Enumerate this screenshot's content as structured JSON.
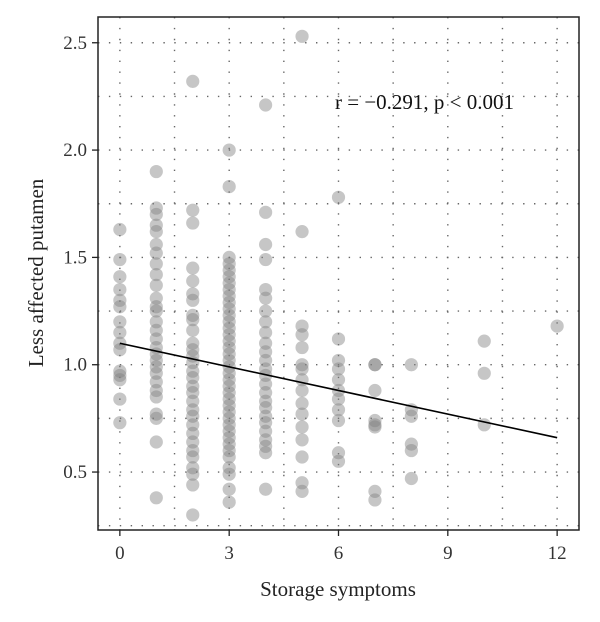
{
  "chart_data": {
    "type": "scatter",
    "title": "",
    "xlabel": "Storage symptoms",
    "ylabel": "Less affected putamen",
    "xlim": [
      -0.6,
      12.6
    ],
    "ylim": [
      0.23,
      2.62
    ],
    "x_ticks": [
      0,
      3,
      6,
      9,
      12
    ],
    "x_tick_labels": [
      "0",
      "3",
      "6",
      "9",
      "12"
    ],
    "y_ticks": [
      0.5,
      1.0,
      1.5,
      2.0,
      2.5
    ],
    "y_tick_labels": [
      "0.5",
      "1.0",
      "1.5",
      "2.0",
      "2.5"
    ],
    "grid": "dotted",
    "annotation": "r = −0.291, p < 0.001",
    "point_color": "#808080",
    "line_color": "#000000",
    "regression_line": {
      "x": [
        0,
        12
      ],
      "y": [
        1.1,
        0.66
      ]
    },
    "points": [
      {
        "x": 0,
        "y": 1.63
      },
      {
        "x": 0,
        "y": 1.49
      },
      {
        "x": 0,
        "y": 1.41
      },
      {
        "x": 0,
        "y": 1.35
      },
      {
        "x": 0,
        "y": 1.3
      },
      {
        "x": 0,
        "y": 1.27
      },
      {
        "x": 0,
        "y": 1.2
      },
      {
        "x": 0,
        "y": 1.15
      },
      {
        "x": 0,
        "y": 1.1
      },
      {
        "x": 0,
        "y": 1.07
      },
      {
        "x": 0,
        "y": 0.97
      },
      {
        "x": 0,
        "y": 0.95
      },
      {
        "x": 0,
        "y": 0.93
      },
      {
        "x": 0,
        "y": 0.84
      },
      {
        "x": 0,
        "y": 0.73
      },
      {
        "x": 1,
        "y": 1.9
      },
      {
        "x": 1,
        "y": 1.73
      },
      {
        "x": 1,
        "y": 1.7
      },
      {
        "x": 1,
        "y": 1.65
      },
      {
        "x": 1,
        "y": 1.62
      },
      {
        "x": 1,
        "y": 1.56
      },
      {
        "x": 1,
        "y": 1.52
      },
      {
        "x": 1,
        "y": 1.47
      },
      {
        "x": 1,
        "y": 1.42
      },
      {
        "x": 1,
        "y": 1.37
      },
      {
        "x": 1,
        "y": 1.31
      },
      {
        "x": 1,
        "y": 1.27
      },
      {
        "x": 1,
        "y": 1.25
      },
      {
        "x": 1,
        "y": 1.2
      },
      {
        "x": 1,
        "y": 1.16
      },
      {
        "x": 1,
        "y": 1.12
      },
      {
        "x": 1,
        "y": 1.08
      },
      {
        "x": 1,
        "y": 1.05
      },
      {
        "x": 1,
        "y": 1.02
      },
      {
        "x": 1,
        "y": 0.99
      },
      {
        "x": 1,
        "y": 0.96
      },
      {
        "x": 1,
        "y": 0.92
      },
      {
        "x": 1,
        "y": 0.88
      },
      {
        "x": 1,
        "y": 0.85
      },
      {
        "x": 1,
        "y": 0.77
      },
      {
        "x": 1,
        "y": 0.75
      },
      {
        "x": 1,
        "y": 0.64
      },
      {
        "x": 1,
        "y": 0.38
      },
      {
        "x": 2,
        "y": 2.32
      },
      {
        "x": 2,
        "y": 1.72
      },
      {
        "x": 2,
        "y": 1.66
      },
      {
        "x": 2,
        "y": 1.45
      },
      {
        "x": 2,
        "y": 1.39
      },
      {
        "x": 2,
        "y": 1.33
      },
      {
        "x": 2,
        "y": 1.3
      },
      {
        "x": 2,
        "y": 1.23
      },
      {
        "x": 2,
        "y": 1.21
      },
      {
        "x": 2,
        "y": 1.16
      },
      {
        "x": 2,
        "y": 1.1
      },
      {
        "x": 2,
        "y": 1.07
      },
      {
        "x": 2,
        "y": 1.04
      },
      {
        "x": 2,
        "y": 1.01
      },
      {
        "x": 2,
        "y": 0.97
      },
      {
        "x": 2,
        "y": 0.94
      },
      {
        "x": 2,
        "y": 0.9
      },
      {
        "x": 2,
        "y": 0.87
      },
      {
        "x": 2,
        "y": 0.83
      },
      {
        "x": 2,
        "y": 0.79
      },
      {
        "x": 2,
        "y": 0.76
      },
      {
        "x": 2,
        "y": 0.72
      },
      {
        "x": 2,
        "y": 0.68
      },
      {
        "x": 2,
        "y": 0.64
      },
      {
        "x": 2,
        "y": 0.6
      },
      {
        "x": 2,
        "y": 0.57
      },
      {
        "x": 2,
        "y": 0.52
      },
      {
        "x": 2,
        "y": 0.49
      },
      {
        "x": 2,
        "y": 0.44
      },
      {
        "x": 2,
        "y": 0.3
      },
      {
        "x": 3,
        "y": 2.0
      },
      {
        "x": 3,
        "y": 1.83
      },
      {
        "x": 3,
        "y": 1.5
      },
      {
        "x": 3,
        "y": 1.47
      },
      {
        "x": 3,
        "y": 1.44
      },
      {
        "x": 3,
        "y": 1.41
      },
      {
        "x": 3,
        "y": 1.38
      },
      {
        "x": 3,
        "y": 1.35
      },
      {
        "x": 3,
        "y": 1.32
      },
      {
        "x": 3,
        "y": 1.29
      },
      {
        "x": 3,
        "y": 1.26
      },
      {
        "x": 3,
        "y": 1.23
      },
      {
        "x": 3,
        "y": 1.2
      },
      {
        "x": 3,
        "y": 1.17
      },
      {
        "x": 3,
        "y": 1.14
      },
      {
        "x": 3,
        "y": 1.11
      },
      {
        "x": 3,
        "y": 1.08
      },
      {
        "x": 3,
        "y": 1.05
      },
      {
        "x": 3,
        "y": 1.02
      },
      {
        "x": 3,
        "y": 0.99
      },
      {
        "x": 3,
        "y": 0.96
      },
      {
        "x": 3,
        "y": 0.93
      },
      {
        "x": 3,
        "y": 0.9
      },
      {
        "x": 3,
        "y": 0.87
      },
      {
        "x": 3,
        "y": 0.84
      },
      {
        "x": 3,
        "y": 0.81
      },
      {
        "x": 3,
        "y": 0.78
      },
      {
        "x": 3,
        "y": 0.75
      },
      {
        "x": 3,
        "y": 0.72
      },
      {
        "x": 3,
        "y": 0.69
      },
      {
        "x": 3,
        "y": 0.66
      },
      {
        "x": 3,
        "y": 0.63
      },
      {
        "x": 3,
        "y": 0.6
      },
      {
        "x": 3,
        "y": 0.57
      },
      {
        "x": 3,
        "y": 0.52
      },
      {
        "x": 3,
        "y": 0.49
      },
      {
        "x": 3,
        "y": 0.42
      },
      {
        "x": 3,
        "y": 0.36
      },
      {
        "x": 4,
        "y": 2.21
      },
      {
        "x": 4,
        "y": 1.71
      },
      {
        "x": 4,
        "y": 1.56
      },
      {
        "x": 4,
        "y": 1.49
      },
      {
        "x": 4,
        "y": 1.35
      },
      {
        "x": 4,
        "y": 1.31
      },
      {
        "x": 4,
        "y": 1.25
      },
      {
        "x": 4,
        "y": 1.2
      },
      {
        "x": 4,
        "y": 1.15
      },
      {
        "x": 4,
        "y": 1.1
      },
      {
        "x": 4,
        "y": 1.06
      },
      {
        "x": 4,
        "y": 1.02
      },
      {
        "x": 4,
        "y": 0.98
      },
      {
        "x": 4,
        "y": 0.95
      },
      {
        "x": 4,
        "y": 0.91
      },
      {
        "x": 4,
        "y": 0.87
      },
      {
        "x": 4,
        "y": 0.83
      },
      {
        "x": 4,
        "y": 0.8
      },
      {
        "x": 4,
        "y": 0.76
      },
      {
        "x": 4,
        "y": 0.73
      },
      {
        "x": 4,
        "y": 0.69
      },
      {
        "x": 4,
        "y": 0.65
      },
      {
        "x": 4,
        "y": 0.62
      },
      {
        "x": 4,
        "y": 0.59
      },
      {
        "x": 4,
        "y": 0.42
      },
      {
        "x": 5,
        "y": 2.53
      },
      {
        "x": 5,
        "y": 1.62
      },
      {
        "x": 5,
        "y": 1.18
      },
      {
        "x": 5,
        "y": 1.14
      },
      {
        "x": 5,
        "y": 1.08
      },
      {
        "x": 5,
        "y": 1.0
      },
      {
        "x": 5,
        "y": 0.98
      },
      {
        "x": 5,
        "y": 0.93
      },
      {
        "x": 5,
        "y": 0.88
      },
      {
        "x": 5,
        "y": 0.82
      },
      {
        "x": 5,
        "y": 0.77
      },
      {
        "x": 5,
        "y": 0.71
      },
      {
        "x": 5,
        "y": 0.65
      },
      {
        "x": 5,
        "y": 0.57
      },
      {
        "x": 5,
        "y": 0.45
      },
      {
        "x": 5,
        "y": 0.41
      },
      {
        "x": 6,
        "y": 1.78
      },
      {
        "x": 6,
        "y": 1.12
      },
      {
        "x": 6,
        "y": 1.02
      },
      {
        "x": 6,
        "y": 0.98
      },
      {
        "x": 6,
        "y": 0.93
      },
      {
        "x": 6,
        "y": 0.88
      },
      {
        "x": 6,
        "y": 0.84
      },
      {
        "x": 6,
        "y": 0.79
      },
      {
        "x": 6,
        "y": 0.74
      },
      {
        "x": 6,
        "y": 0.59
      },
      {
        "x": 6,
        "y": 0.55
      },
      {
        "x": 7,
        "y": 1.0
      },
      {
        "x": 7,
        "y": 1.0
      },
      {
        "x": 7,
        "y": 0.88
      },
      {
        "x": 7,
        "y": 0.74
      },
      {
        "x": 7,
        "y": 0.72
      },
      {
        "x": 7,
        "y": 0.71
      },
      {
        "x": 7,
        "y": 0.41
      },
      {
        "x": 7,
        "y": 0.37
      },
      {
        "x": 8,
        "y": 1.0
      },
      {
        "x": 8,
        "y": 0.79
      },
      {
        "x": 8,
        "y": 0.76
      },
      {
        "x": 8,
        "y": 0.63
      },
      {
        "x": 8,
        "y": 0.6
      },
      {
        "x": 8,
        "y": 0.47
      },
      {
        "x": 10,
        "y": 1.11
      },
      {
        "x": 10,
        "y": 0.96
      },
      {
        "x": 10,
        "y": 0.72
      },
      {
        "x": 12,
        "y": 1.18
      }
    ]
  }
}
